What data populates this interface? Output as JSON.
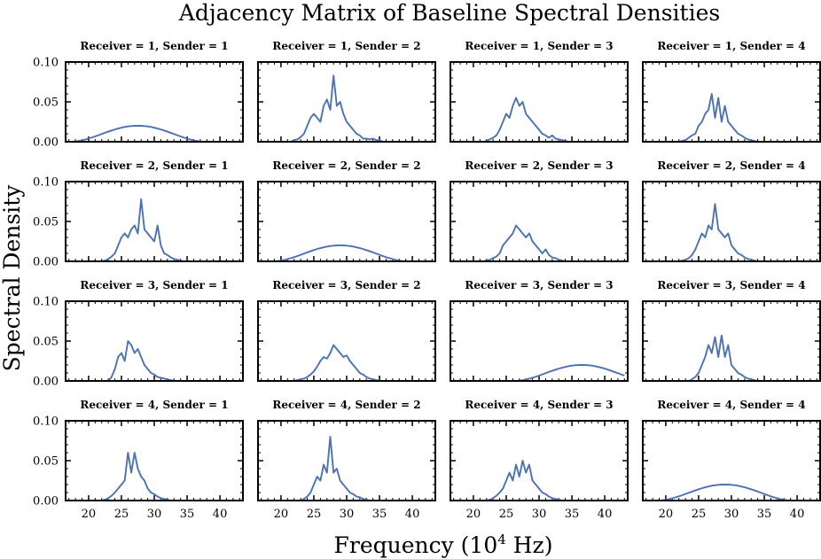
{
  "chart_data": {
    "type": "line",
    "title": "Adjacency Matrix of Baseline Spectral Densities",
    "xlabel": "Frequency (10$^4$ Hz)",
    "xlabel_main": "Frequency (10",
    "xlabel_exp": "4",
    "xlabel_tail": " Hz)",
    "ylabel": "Spectral Density",
    "xlim": [
      16.5,
      43.5
    ],
    "ylim": [
      0,
      0.1
    ],
    "xticks": [
      "20",
      "25",
      "30",
      "35",
      "40"
    ],
    "xtick_values": [
      20,
      25,
      30,
      35,
      40
    ],
    "yticks": [
      "0.00",
      "0.05",
      "0.10"
    ],
    "ytick_values": [
      0,
      0.05,
      0.1
    ],
    "x": [
      17.0,
      17.5,
      18.0,
      18.5,
      19.0,
      19.5,
      20.0,
      20.5,
      21.0,
      21.5,
      22.0,
      22.5,
      23.0,
      23.5,
      24.0,
      24.5,
      25.0,
      25.5,
      26.0,
      26.5,
      27.0,
      27.5,
      28.0,
      28.5,
      29.0,
      29.5,
      30.0,
      30.5,
      31.0,
      31.5,
      32.0,
      32.5,
      33.0,
      33.5,
      34.0,
      34.5,
      35.0,
      35.5,
      36.0,
      36.5,
      37.0,
      37.5,
      38.0,
      38.5,
      39.0,
      39.5,
      40.0,
      40.5,
      41.0,
      41.5,
      42.0,
      42.5,
      43.0
    ],
    "panels": [
      {
        "title": "Receiver = 1, Sender = 1",
        "values": [
          0,
          0,
          0.0003,
          0.0009,
          0.0018,
          0.0028,
          0.004,
          0.0053,
          0.0067,
          0.0082,
          0.0097,
          0.0112,
          0.0127,
          0.0141,
          0.0154,
          0.0166,
          0.0176,
          0.0185,
          0.0192,
          0.0197,
          0.02,
          0.0201,
          0.02,
          0.0197,
          0.0192,
          0.0185,
          0.0176,
          0.0166,
          0.0154,
          0.0141,
          0.0127,
          0.0112,
          0.0097,
          0.0082,
          0.0067,
          0.0053,
          0.004,
          0.0028,
          0.0018,
          0.0009,
          0.0003,
          0,
          0,
          0,
          0,
          0,
          0,
          0,
          0,
          0,
          0,
          0,
          0
        ]
      },
      {
        "title": "Receiver = 1, Sender = 2",
        "values": [
          0,
          0,
          0,
          0,
          0,
          0,
          0,
          0,
          0,
          0,
          0.002,
          0.003,
          0.006,
          0.01,
          0.02,
          0.03,
          0.035,
          0.03,
          0.025,
          0.045,
          0.053,
          0.04,
          0.083,
          0.045,
          0.05,
          0.035,
          0.025,
          0.02,
          0.015,
          0.01,
          0.008,
          0.004,
          0.004,
          0.003,
          0.004,
          0.002,
          0.002,
          0,
          0,
          0,
          0,
          0,
          0,
          0,
          0,
          0,
          0,
          0,
          0,
          0,
          0,
          0,
          0
        ]
      },
      {
        "title": "Receiver = 1, Sender = 3",
        "values": [
          0,
          0,
          0,
          0,
          0,
          0,
          0,
          0,
          0,
          0,
          0.001,
          0.003,
          0.005,
          0.008,
          0.015,
          0.025,
          0.035,
          0.03,
          0.045,
          0.055,
          0.045,
          0.05,
          0.035,
          0.03,
          0.025,
          0.02,
          0.015,
          0.01,
          0.008,
          0.005,
          0.008,
          0.004,
          0.003,
          0.002,
          0.001,
          0,
          0,
          0,
          0,
          0,
          0,
          0,
          0,
          0,
          0,
          0,
          0,
          0,
          0,
          0,
          0,
          0,
          0
        ]
      },
      {
        "title": "Receiver = 1, Sender = 4",
        "values": [
          0,
          0,
          0,
          0,
          0,
          0,
          0,
          0,
          0,
          0,
          0,
          0.001,
          0.002,
          0.005,
          0.008,
          0.01,
          0.02,
          0.025,
          0.035,
          0.04,
          0.06,
          0.03,
          0.055,
          0.025,
          0.045,
          0.025,
          0.02,
          0.015,
          0.01,
          0.008,
          0.005,
          0.003,
          0.002,
          0.001,
          0,
          0,
          0,
          0,
          0,
          0,
          0,
          0,
          0,
          0,
          0,
          0,
          0,
          0,
          0,
          0,
          0,
          0,
          0
        ]
      },
      {
        "title": "Receiver = 2, Sender = 1",
        "values": [
          0,
          0,
          0,
          0,
          0,
          0,
          0,
          0,
          0,
          0,
          0,
          0.001,
          0.003,
          0.006,
          0.01,
          0.02,
          0.03,
          0.035,
          0.03,
          0.04,
          0.045,
          0.035,
          0.078,
          0.04,
          0.035,
          0.03,
          0.025,
          0.045,
          0.02,
          0.01,
          0.008,
          0.005,
          0.003,
          0.002,
          0.001,
          0,
          0,
          0,
          0,
          0,
          0,
          0,
          0,
          0,
          0,
          0,
          0,
          0,
          0,
          0,
          0,
          0,
          0
        ]
      },
      {
        "title": "Receiver = 2, Sender = 2",
        "values": [
          0,
          0,
          0,
          0,
          0,
          0.0003,
          0.0009,
          0.0018,
          0.0028,
          0.004,
          0.0053,
          0.0067,
          0.0082,
          0.0097,
          0.0112,
          0.0127,
          0.0141,
          0.0154,
          0.0166,
          0.0176,
          0.0185,
          0.0192,
          0.0197,
          0.02,
          0.0201,
          0.02,
          0.0197,
          0.0192,
          0.0185,
          0.0176,
          0.0166,
          0.0154,
          0.0141,
          0.0127,
          0.0112,
          0.0097,
          0.0082,
          0.0067,
          0.0053,
          0.004,
          0.0028,
          0.0018,
          0.0009,
          0.0003,
          0,
          0,
          0,
          0,
          0,
          0,
          0,
          0,
          0
        ]
      },
      {
        "title": "Receiver = 2, Sender = 3",
        "values": [
          0,
          0,
          0,
          0,
          0,
          0,
          0,
          0,
          0,
          0,
          0.001,
          0.002,
          0.004,
          0.006,
          0.01,
          0.02,
          0.025,
          0.03,
          0.035,
          0.045,
          0.04,
          0.035,
          0.03,
          0.035,
          0.025,
          0.02,
          0.015,
          0.01,
          0.015,
          0.008,
          0.005,
          0.004,
          0.002,
          0.001,
          0,
          0,
          0,
          0,
          0,
          0,
          0,
          0,
          0,
          0,
          0,
          0,
          0,
          0,
          0,
          0,
          0,
          0,
          0
        ]
      },
      {
        "title": "Receiver = 2, Sender = 4",
        "values": [
          0,
          0,
          0,
          0,
          0,
          0,
          0,
          0,
          0,
          0,
          0,
          0.001,
          0.002,
          0.004,
          0.008,
          0.015,
          0.025,
          0.035,
          0.03,
          0.045,
          0.04,
          0.072,
          0.04,
          0.035,
          0.03,
          0.035,
          0.02,
          0.015,
          0.01,
          0.008,
          0.005,
          0.003,
          0.002,
          0.001,
          0,
          0,
          0,
          0,
          0,
          0,
          0,
          0,
          0,
          0,
          0,
          0,
          0,
          0,
          0,
          0,
          0,
          0,
          0
        ]
      },
      {
        "title": "Receiver = 3, Sender = 1",
        "values": [
          0,
          0,
          0,
          0,
          0,
          0,
          0,
          0,
          0,
          0,
          0,
          0,
          0,
          0.005,
          0.015,
          0.03,
          0.035,
          0.025,
          0.05,
          0.045,
          0.035,
          0.04,
          0.03,
          0.02,
          0.015,
          0.01,
          0.008,
          0.005,
          0.004,
          0.003,
          0.002,
          0.001,
          0,
          0,
          0,
          0,
          0,
          0,
          0,
          0,
          0,
          0,
          0,
          0,
          0,
          0,
          0,
          0,
          0,
          0,
          0,
          0,
          0
        ]
      },
      {
        "title": "Receiver = 3, Sender = 2",
        "values": [
          0,
          0,
          0,
          0,
          0,
          0,
          0,
          0,
          0,
          0,
          0,
          0.001,
          0.002,
          0.003,
          0.005,
          0.008,
          0.012,
          0.018,
          0.025,
          0.03,
          0.028,
          0.035,
          0.045,
          0.04,
          0.035,
          0.03,
          0.032,
          0.025,
          0.02,
          0.015,
          0.01,
          0.008,
          0.005,
          0.003,
          0.002,
          0.001,
          0,
          0,
          0,
          0,
          0,
          0,
          0,
          0,
          0,
          0,
          0,
          0,
          0,
          0,
          0,
          0,
          0
        ]
      },
      {
        "title": "Receiver = 3, Sender = 3",
        "values": [
          0,
          0,
          0,
          0,
          0,
          0,
          0,
          0,
          0,
          0,
          0,
          0,
          0,
          0,
          0,
          0,
          0,
          0,
          0,
          0,
          0.0003,
          0.0009,
          0.0018,
          0.0028,
          0.004,
          0.0053,
          0.0067,
          0.0082,
          0.0097,
          0.0112,
          0.0127,
          0.0141,
          0.0154,
          0.0166,
          0.0176,
          0.0185,
          0.0192,
          0.0197,
          0.02,
          0.0201,
          0.02,
          0.0197,
          0.0192,
          0.0185,
          0.0176,
          0.0166,
          0.0154,
          0.0141,
          0.0127,
          0.0112,
          0.0097,
          0.0082,
          0.0067
        ]
      },
      {
        "title": "Receiver = 3, Sender = 4",
        "values": [
          0,
          0,
          0,
          0,
          0,
          0,
          0,
          0,
          0,
          0,
          0,
          0,
          0,
          0,
          0.002,
          0.005,
          0.01,
          0.02,
          0.03,
          0.045,
          0.035,
          0.055,
          0.03,
          0.057,
          0.03,
          0.045,
          0.02,
          0.015,
          0.01,
          0.008,
          0.005,
          0.003,
          0.002,
          0.001,
          0,
          0,
          0,
          0,
          0,
          0,
          0,
          0,
          0,
          0,
          0,
          0,
          0,
          0,
          0,
          0,
          0,
          0,
          0
        ]
      },
      {
        "title": "Receiver = 4, Sender = 1",
        "values": [
          0,
          0,
          0,
          0,
          0,
          0,
          0,
          0,
          0,
          0,
          0,
          0.001,
          0.003,
          0.006,
          0.01,
          0.015,
          0.02,
          0.025,
          0.06,
          0.035,
          0.06,
          0.04,
          0.03,
          0.025,
          0.015,
          0.01,
          0.008,
          0.005,
          0.003,
          0.002,
          0.001,
          0,
          0,
          0,
          0,
          0,
          0,
          0,
          0,
          0,
          0,
          0,
          0,
          0,
          0,
          0,
          0,
          0,
          0,
          0,
          0,
          0,
          0
        ]
      },
      {
        "title": "Receiver = 4, Sender = 2",
        "values": [
          0,
          0,
          0,
          0,
          0,
          0,
          0,
          0,
          0,
          0,
          0,
          0,
          0,
          0.002,
          0.005,
          0.01,
          0.02,
          0.03,
          0.025,
          0.045,
          0.035,
          0.08,
          0.035,
          0.04,
          0.025,
          0.02,
          0.015,
          0.01,
          0.008,
          0.005,
          0.004,
          0.002,
          0.001,
          0,
          0,
          0,
          0,
          0,
          0,
          0,
          0,
          0,
          0,
          0,
          0,
          0,
          0,
          0,
          0,
          0,
          0,
          0,
          0
        ]
      },
      {
        "title": "Receiver = 4, Sender = 3",
        "values": [
          0,
          0,
          0,
          0,
          0,
          0,
          0,
          0,
          0,
          0,
          0,
          0.001,
          0.003,
          0.006,
          0.01,
          0.015,
          0.025,
          0.035,
          0.025,
          0.045,
          0.03,
          0.05,
          0.035,
          0.045,
          0.025,
          0.02,
          0.015,
          0.01,
          0.008,
          0.005,
          0.003,
          0.002,
          0.001,
          0,
          0,
          0,
          0,
          0,
          0,
          0,
          0,
          0,
          0,
          0,
          0,
          0,
          0,
          0,
          0,
          0,
          0,
          0,
          0
        ]
      },
      {
        "title": "Receiver = 4, Sender = 4",
        "values": [
          0,
          0,
          0,
          0,
          0,
          0.0003,
          0.0009,
          0.0018,
          0.0028,
          0.004,
          0.0053,
          0.0067,
          0.0082,
          0.0097,
          0.0112,
          0.0127,
          0.0141,
          0.0154,
          0.0166,
          0.0176,
          0.0185,
          0.0192,
          0.0197,
          0.02,
          0.0201,
          0.02,
          0.0197,
          0.0192,
          0.0185,
          0.0176,
          0.0166,
          0.0154,
          0.0141,
          0.0127,
          0.0112,
          0.0097,
          0.0082,
          0.0067,
          0.0053,
          0.004,
          0.0028,
          0.0018,
          0.0009,
          0.0003,
          0,
          0,
          0,
          0,
          0,
          0,
          0,
          0,
          0
        ]
      }
    ]
  }
}
